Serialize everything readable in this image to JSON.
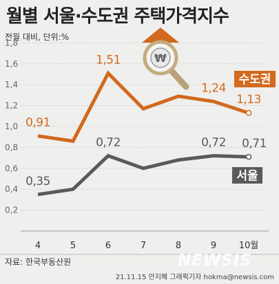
{
  "chart_data": {
    "type": "line",
    "title": "월별 서울·수도권 주택가격지수",
    "subtitle": "전월 대비, 단위:%",
    "categories": [
      "4",
      "5",
      "6",
      "7",
      "8",
      "9",
      "10월"
    ],
    "ylim": [
      0,
      1.8
    ],
    "yticks": [
      0.2,
      0.4,
      0.6,
      0.8,
      1.0,
      1.2,
      1.4,
      1.6,
      1.8
    ],
    "ytick_labels": [
      "0,2",
      "0,4",
      "0,6",
      "0,8",
      "1,0",
      "1,2",
      "1,4",
      "1,6",
      "1,8"
    ],
    "grid": true,
    "series": [
      {
        "name": "수도권",
        "color": "#d2691e",
        "values": [
          0.91,
          0.86,
          1.51,
          1.17,
          1.29,
          1.24,
          1.13
        ],
        "data_labels": [
          "0,91",
          "",
          "1,51",
          "",
          "",
          "1,24",
          "1,13"
        ]
      },
      {
        "name": "서울",
        "color": "#5a5a5a",
        "values": [
          0.35,
          0.4,
          0.72,
          0.6,
          0.68,
          0.72,
          0.71
        ],
        "data_labels": [
          "0,35",
          "",
          "0,72",
          "",
          "",
          "0,72",
          "0,71"
        ]
      }
    ],
    "source": "자료: 한국부동산원",
    "credit": "21.11.15 안지혜 그래픽기자 hokma@newsis.com",
    "watermark": "NEWSIS",
    "icon": "magnifier-won-up-arrow-icon"
  }
}
